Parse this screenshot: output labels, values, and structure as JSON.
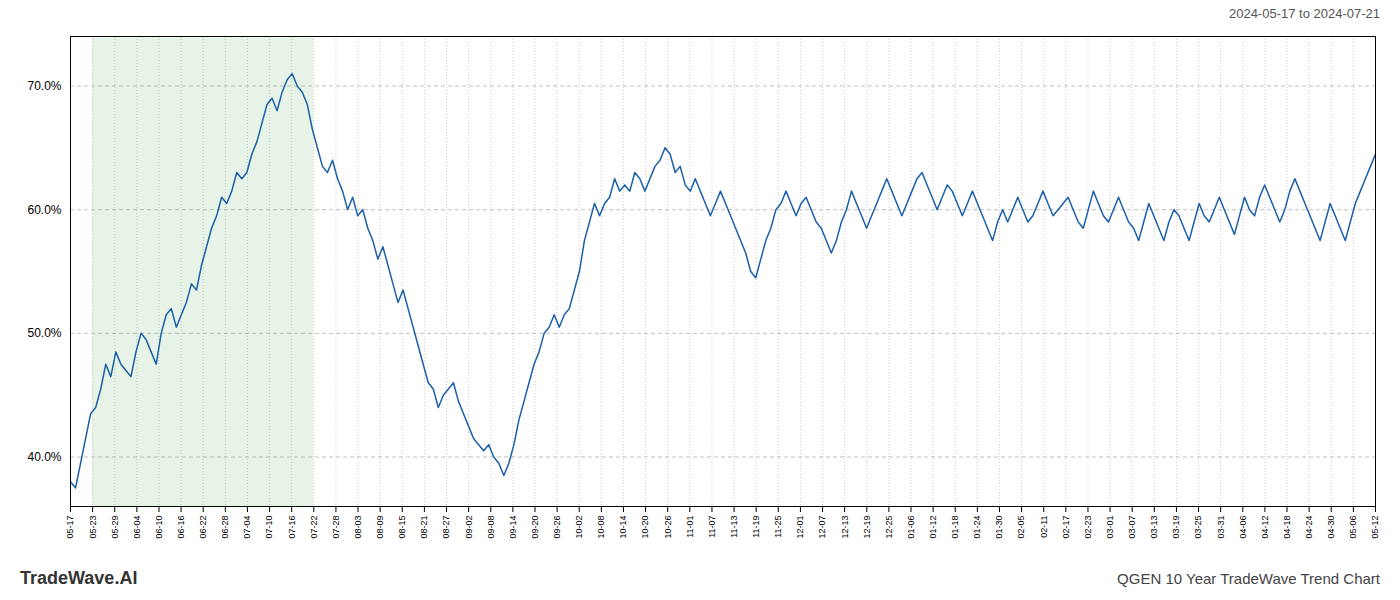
{
  "chart_data": {
    "type": "line",
    "title": "QGEN 10 Year TradeWave Trend Chart",
    "subtitle": "2024-05-17 to 2024-07-21",
    "caption": "TradeWave.AI",
    "color": "#1a5fa8",
    "grid": true,
    "xlim": [
      0,
      259
    ],
    "xticks": [
      {
        "value": 0,
        "label": "05-17"
      },
      {
        "value": 4.3898305084,
        "label": "05-23"
      },
      {
        "value": 8.7796610169,
        "label": "05-29"
      },
      {
        "value": 13.1694915254,
        "label": "06-04"
      },
      {
        "value": 17.5593220338,
        "label": "06-10"
      },
      {
        "value": 21.9491525423,
        "label": "06-16"
      },
      {
        "value": 26.3389830508,
        "label": "06-22"
      },
      {
        "value": 30.7288135593,
        "label": "06-28"
      },
      {
        "value": 35.1186440677,
        "label": "07-04"
      },
      {
        "value": 39.5084745762,
        "label": "07-10"
      },
      {
        "value": 43.8983050847,
        "label": "07-16"
      },
      {
        "value": 48.2881355932,
        "label": "07-22"
      },
      {
        "value": 52.6779661016,
        "label": "07-28"
      },
      {
        "value": 57.0677966101,
        "label": "08-03"
      },
      {
        "value": 61.4576271186,
        "label": "08-09"
      },
      {
        "value": 65.8474576271,
        "label": "08-15"
      },
      {
        "value": 70.2372881355,
        "label": "08-21"
      },
      {
        "value": 74.627118644,
        "label": "08-27"
      },
      {
        "value": 79.0169491525,
        "label": "09-02"
      },
      {
        "value": 83.406779661,
        "label": "09-08"
      },
      {
        "value": 87.7966101694,
        "label": "09-14"
      },
      {
        "value": 92.1864406779,
        "label": "09-20"
      },
      {
        "value": 96.5762711864,
        "label": "09-26"
      },
      {
        "value": 100.9661016949,
        "label": "10-02"
      },
      {
        "value": 105.3559322033,
        "label": "10-08"
      },
      {
        "value": 109.7457627118,
        "label": "10-14"
      },
      {
        "value": 114.1355932203,
        "label": "10-20"
      },
      {
        "value": 118.5254237288,
        "label": "10-26"
      },
      {
        "value": 122.9152542372,
        "label": "11-01"
      },
      {
        "value": 127.3050847457,
        "label": "11-07"
      },
      {
        "value": 131.6949152542,
        "label": "11-13"
      },
      {
        "value": 136.0847457627,
        "label": "11-19"
      },
      {
        "value": 140.4745762711,
        "label": "11-25"
      },
      {
        "value": 144.8644067796,
        "label": "12-01"
      },
      {
        "value": 149.2542372881,
        "label": "12-07"
      },
      {
        "value": 153.6440677966,
        "label": "12-13"
      },
      {
        "value": 158.033898305,
        "label": "12-19"
      },
      {
        "value": 162.4237288135,
        "label": "12-25"
      },
      {
        "value": 166.813559322,
        "label": "01-06"
      },
      {
        "value": 171.2033898305,
        "label": "01-12"
      },
      {
        "value": 175.5932203389,
        "label": "01-18"
      },
      {
        "value": 179.9830508474,
        "label": "01-24"
      },
      {
        "value": 184.3728813559,
        "label": "01-30"
      },
      {
        "value": 188.7627118644,
        "label": "02-05"
      },
      {
        "value": 193.1525423728,
        "label": "02-11"
      },
      {
        "value": 197.5423728813,
        "label": "02-17"
      },
      {
        "value": 201.9322033898,
        "label": "02-23"
      },
      {
        "value": 206.3220338983,
        "label": "03-01"
      },
      {
        "value": 210.7118644067,
        "label": "03-07"
      },
      {
        "value": 215.1016949152,
        "label": "03-13"
      },
      {
        "value": 219.4915254237,
        "label": "03-19"
      },
      {
        "value": 223.8813559322,
        "label": "03-25"
      },
      {
        "value": 228.2711864406,
        "label": "03-31"
      },
      {
        "value": 232.6610169491,
        "label": "04-06"
      },
      {
        "value": 237.0508474576,
        "label": "04-12"
      },
      {
        "value": 241.4406779661,
        "label": "04-18"
      },
      {
        "value": 245.8305084745,
        "label": "04-24"
      },
      {
        "value": 250.220338983,
        "label": "04-30"
      },
      {
        "value": 254.6101694915,
        "label": "05-06"
      },
      {
        "value": 259,
        "label": "05-12"
      }
    ],
    "ylim": [
      36,
      74
    ],
    "yticks": [
      {
        "value": 40.0,
        "label": "40.0%"
      },
      {
        "value": 50.0,
        "label": "50.0%"
      },
      {
        "value": 60.0,
        "label": "60.0%"
      },
      {
        "value": 70.0,
        "label": "70.0%"
      }
    ],
    "shaded_range": {
      "x": [
        4.3898305084,
        48.2881355932
      ],
      "color": "#cce5cc"
    },
    "values": [
      38.0,
      37.5,
      39.5,
      41.5,
      43.5,
      44.0,
      45.5,
      47.5,
      46.5,
      48.5,
      47.5,
      47.0,
      46.5,
      48.5,
      50.0,
      49.5,
      48.5,
      47.5,
      50.0,
      51.5,
      52.0,
      50.5,
      51.5,
      52.5,
      54.0,
      53.5,
      55.5,
      57.0,
      58.5,
      59.5,
      61.0,
      60.5,
      61.5,
      63.0,
      62.5,
      63.0,
      64.5,
      65.5,
      67.0,
      68.5,
      69.0,
      68.0,
      69.5,
      70.5,
      71.0,
      70.0,
      69.5,
      68.5,
      66.5,
      65.0,
      63.5,
      63.0,
      64.0,
      62.5,
      61.5,
      60.0,
      61.0,
      59.5,
      60.0,
      58.5,
      57.5,
      56.0,
      57.0,
      55.5,
      54.0,
      52.5,
      53.5,
      52.0,
      50.5,
      49.0,
      47.5,
      46.0,
      45.5,
      44.0,
      45.0,
      45.5,
      46.0,
      44.5,
      43.5,
      42.5,
      41.5,
      41.0,
      40.5,
      41.0,
      40.0,
      39.5,
      38.5,
      39.5,
      41.0,
      43.0,
      44.5,
      46.0,
      47.5,
      48.5,
      50.0,
      50.5,
      51.5,
      50.5,
      51.5,
      52.0,
      53.5,
      55.0,
      57.5,
      59.0,
      60.5,
      59.5,
      60.5,
      61.0,
      62.5,
      61.5,
      62.0,
      61.5,
      63.0,
      62.5,
      61.5,
      62.5,
      63.5,
      64.0,
      65.0,
      64.5,
      63.0,
      63.5,
      62.0,
      61.5,
      62.5,
      61.5,
      60.5,
      59.5,
      60.5,
      61.5,
      60.5,
      59.5,
      58.5,
      57.5,
      56.5,
      55.0,
      54.5,
      56.0,
      57.5,
      58.5,
      60.0,
      60.5,
      61.5,
      60.5,
      59.5,
      60.5,
      61.0,
      60.0,
      59.0,
      58.5,
      57.5,
      56.5,
      57.5,
      59.0,
      60.0,
      61.5,
      60.5,
      59.5,
      58.5,
      59.5,
      60.5,
      61.5,
      62.5,
      61.5,
      60.5,
      59.5,
      60.5,
      61.5,
      62.5,
      63.0,
      62.0,
      61.0,
      60.0,
      61.0,
      62.0,
      61.5,
      60.5,
      59.5,
      60.5,
      61.5,
      60.5,
      59.5,
      58.5,
      57.5,
      59.0,
      60.0,
      59.0,
      60.0,
      61.0,
      60.0,
      59.0,
      59.5,
      60.5,
      61.5,
      60.5,
      59.5,
      60.0,
      60.5,
      61.0,
      60.0,
      59.0,
      58.5,
      60.0,
      61.5,
      60.5,
      59.5,
      59.0,
      60.0,
      61.0,
      60.0,
      59.0,
      58.5,
      57.5,
      59.0,
      60.5,
      59.5,
      58.5,
      57.5,
      59.0,
      60.0,
      59.5,
      58.5,
      57.5,
      59.0,
      60.5,
      59.5,
      59.0,
      60.0,
      61.0,
      60.0,
      59.0,
      58.0,
      59.5,
      61.0,
      60.0,
      59.5,
      61.0,
      62.0,
      61.0,
      60.0,
      59.0,
      60.0,
      61.5,
      62.5,
      61.5,
      60.5,
      59.5,
      58.5,
      57.5,
      59.0,
      60.5,
      59.5,
      58.5,
      57.5,
      59.0,
      60.5,
      61.5,
      62.5,
      63.5,
      64.5
    ]
  }
}
